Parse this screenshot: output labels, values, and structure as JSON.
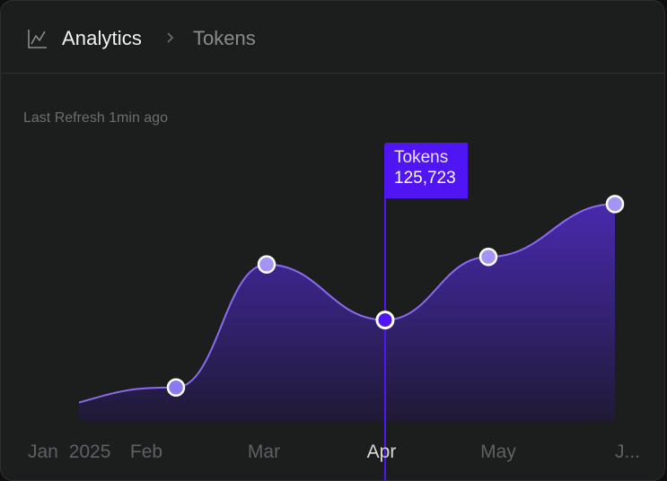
{
  "breadcrumb": {
    "icon": "line-chart-icon",
    "root": "Analytics",
    "separator_icon": "chevron-right-icon",
    "current": "Tokens"
  },
  "status": {
    "last_refresh": "Last Refresh 1min ago"
  },
  "colors": {
    "accent": "#4f16f3",
    "line": "#8a6bf0",
    "point": "#a394f5",
    "background": "#1c1d1d"
  },
  "tooltip": {
    "series_label": "Tokens",
    "value_text": "125,723"
  },
  "chart_data": {
    "type": "area",
    "x_labels": [
      "Jan 2025",
      "Feb",
      "Mar",
      "Apr",
      "May",
      "J..."
    ],
    "active_label": "Apr",
    "series": [
      {
        "name": "Tokens",
        "values": [
          60000,
          72000,
          170000,
          125723,
          176000,
          218000
        ]
      }
    ]
  }
}
